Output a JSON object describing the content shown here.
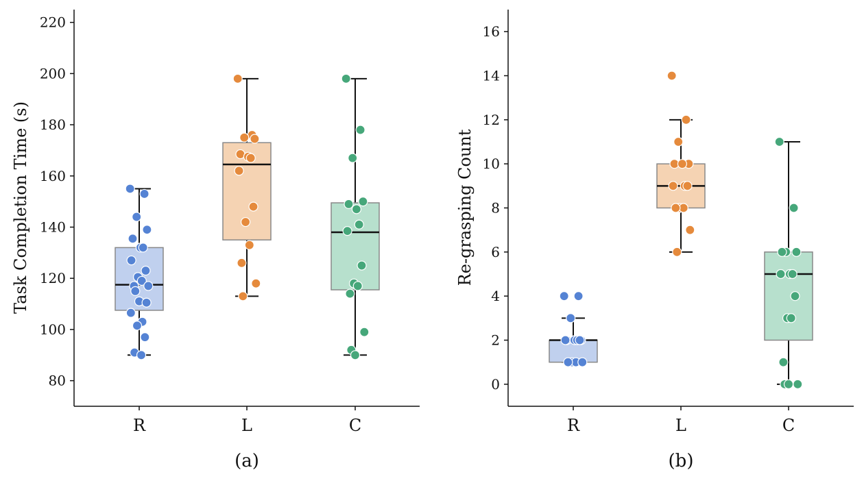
{
  "chart_data": [
    {
      "type": "box",
      "caption": "(a)",
      "categories": [
        "R",
        "L",
        "C"
      ],
      "ylabel": "Task Completion Time (s)",
      "ylim": [
        70,
        225
      ],
      "yticks": [
        80,
        100,
        120,
        140,
        160,
        180,
        200,
        220
      ],
      "colors": {
        "R": {
          "box": "#c0d0ee",
          "point": "#5583d4"
        },
        "L": {
          "box": "#f5d3b3",
          "point": "#e58a3c"
        },
        "C": {
          "box": "#b7e0cd",
          "point": "#46a77a"
        }
      },
      "boxes": [
        {
          "name": "R",
          "min": 90,
          "q1": 107.5,
          "median": 117.5,
          "q3": 132,
          "max": 155
        },
        {
          "name": "L",
          "min": 113,
          "q1": 135,
          "median": 164.5,
          "q3": 173,
          "max": 198
        },
        {
          "name": "C",
          "min": 90,
          "q1": 115.5,
          "median": 138,
          "q3": 149.5,
          "max": 198
        }
      ],
      "points": {
        "R": [
          155,
          153,
          144,
          139,
          135.5,
          132,
          132,
          127,
          123,
          120.5,
          119,
          117,
          117,
          115,
          111,
          110.5,
          106.5,
          103,
          101.5,
          97,
          91,
          90
        ],
        "L": [
          198,
          176,
          175,
          174.5,
          168.5,
          167.5,
          167,
          162,
          148,
          142,
          133,
          126,
          118,
          113
        ],
        "C": [
          198,
          178,
          167,
          150,
          149,
          147,
          141,
          138.5,
          125,
          118,
          117,
          114,
          99,
          92,
          90
        ]
      }
    },
    {
      "type": "box",
      "caption": "(b)",
      "categories": [
        "R",
        "L",
        "C"
      ],
      "ylabel": "Re-grasping Count",
      "ylim": [
        -1,
        17
      ],
      "yticks": [
        0,
        2,
        4,
        6,
        8,
        10,
        12,
        14,
        16
      ],
      "colors": {
        "R": {
          "box": "#c0d0ee",
          "point": "#5583d4"
        },
        "L": {
          "box": "#f5d3b3",
          "point": "#e58a3c"
        },
        "C": {
          "box": "#b7e0cd",
          "point": "#46a77a"
        }
      },
      "boxes": [
        {
          "name": "R",
          "min": 1,
          "q1": 1,
          "median": 2,
          "q3": 2,
          "max": 3
        },
        {
          "name": "L",
          "min": 6,
          "q1": 8,
          "median": 9,
          "q3": 10,
          "max": 12
        },
        {
          "name": "C",
          "min": 0,
          "q1": 2,
          "median": 5,
          "q3": 6,
          "max": 11
        }
      ],
      "points": {
        "R": [
          4,
          4,
          3,
          2,
          2,
          2,
          2,
          2,
          2,
          1,
          1,
          1,
          1
        ],
        "L": [
          14,
          12,
          11,
          10,
          10,
          10,
          9,
          9,
          9,
          8,
          8,
          8,
          7,
          6
        ],
        "C": [
          11,
          8,
          6,
          6,
          6,
          5,
          5,
          5,
          4,
          3,
          3,
          1,
          0,
          0,
          0
        ]
      }
    }
  ]
}
